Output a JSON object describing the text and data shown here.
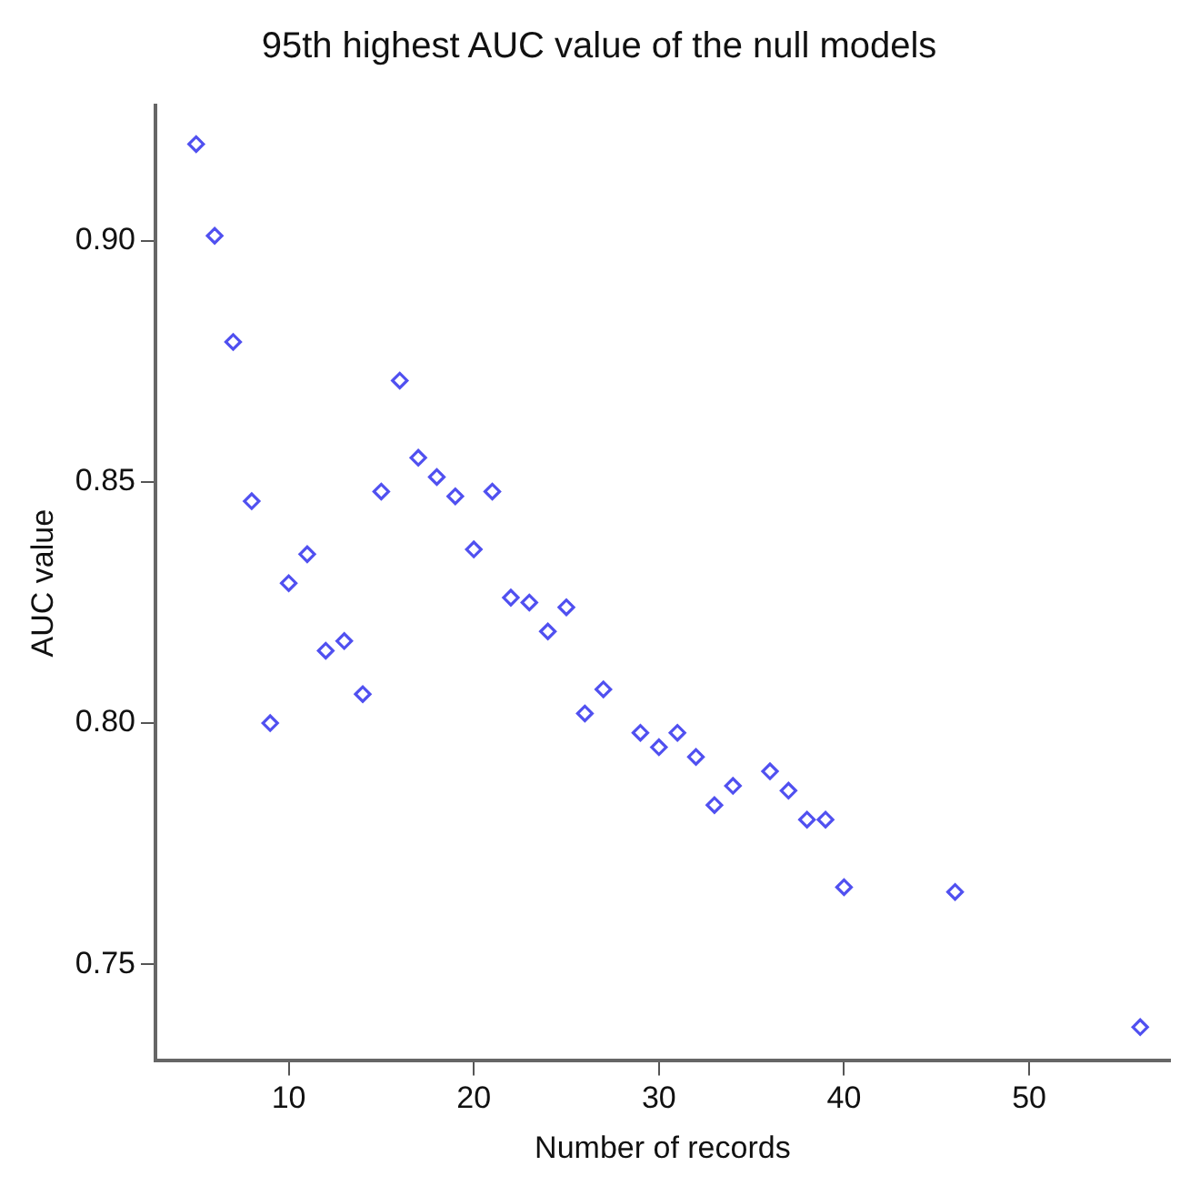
{
  "chart_data": {
    "type": "scatter",
    "title": "95th highest AUC value of the null models",
    "xlabel": "Number of records",
    "ylabel": "AUC value",
    "x": [
      5,
      6,
      7,
      8,
      9,
      10,
      11,
      12,
      13,
      14,
      15,
      16,
      17,
      18,
      19,
      20,
      21,
      22,
      23,
      24,
      25,
      26,
      27,
      29,
      30,
      31,
      32,
      33,
      34,
      36,
      37,
      38,
      39,
      40,
      46,
      56
    ],
    "series": [
      {
        "color": "#5050f0",
        "values": [
          0.92,
          0.901,
          0.879,
          0.846,
          0.8,
          0.829,
          0.835,
          0.815,
          0.817,
          0.806,
          0.848,
          0.871,
          0.855,
          0.851,
          0.847,
          0.836,
          0.848,
          0.826,
          0.825,
          0.819,
          0.824,
          0.802,
          0.807,
          0.798,
          0.795,
          0.798,
          0.793,
          0.783,
          0.787,
          0.79,
          0.786,
          0.78,
          0.78,
          0.766,
          0.765,
          0.737
        ]
      }
    ],
    "xlim": [
      2.8,
      57.6
    ],
    "ylim": [
      0.73,
      0.928
    ],
    "xticks": [
      10,
      20,
      30,
      40,
      50
    ],
    "yticks": [
      {
        "value": 0.75,
        "label": "0.75"
      },
      {
        "value": 0.8,
        "label": "0.80"
      },
      {
        "value": 0.85,
        "label": "0.85"
      },
      {
        "value": 0.9,
        "label": "0.90"
      }
    ],
    "grid": false,
    "legend": false,
    "marker": "diamond"
  }
}
